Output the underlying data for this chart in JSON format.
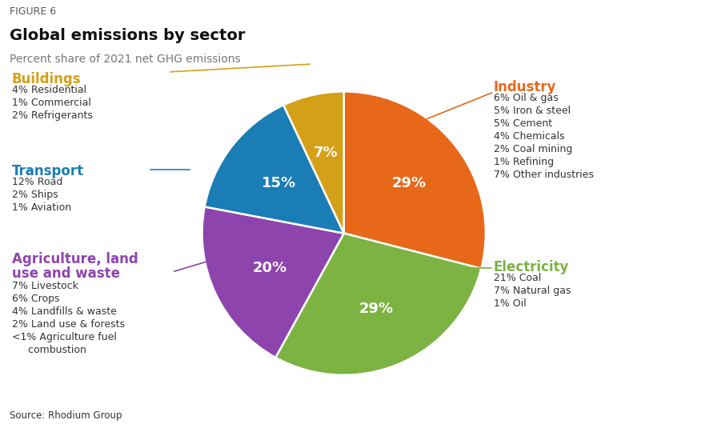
{
  "figure_label": "FIGURE 6",
  "title": "Global emissions by sector",
  "subtitle": "Percent share of 2021 net GHG emissions",
  "source": "Source: Rhodium Group",
  "values": [
    29,
    29,
    20,
    15,
    7
  ],
  "colors": [
    "#E8681A",
    "#7CB342",
    "#8E44AD",
    "#1A7DB5",
    "#D4A017"
  ],
  "pct_labels": [
    "29%",
    "29%",
    "20%",
    "15%",
    "7%"
  ],
  "startangle": 90,
  "background_color": "#FFFFFF",
  "industry_label": "Industry",
  "industry_color": "#E8681A",
  "industry_details": [
    "6% Oil & gas",
    "5% Iron & steel",
    "5% Cement",
    "4% Chemicals",
    "2% Coal mining",
    "1% Refining",
    "7% Other industries"
  ],
  "electricity_label": "Electricity",
  "electricity_color": "#7CB342",
  "electricity_details": [
    "21% Coal",
    "7% Natural gas",
    "1% Oil"
  ],
  "agriculture_label_1": "Agriculture, land",
  "agriculture_label_2": "use and waste",
  "agriculture_color": "#8E44AD",
  "agriculture_details": [
    "7% Livestock",
    "6% Crops",
    "4% Landfills & waste",
    "2% Land use & forests",
    "<1% Agriculture fuel",
    "     combustion"
  ],
  "transport_label": "Transport",
  "transport_color": "#1A7DB5",
  "transport_details": [
    "12% Road",
    "2% Ships",
    "1% Aviation"
  ],
  "buildings_label": "Buildings",
  "buildings_color": "#D4A017",
  "buildings_details": [
    "4% Residential",
    "1% Commercial",
    "2% Refrigerants"
  ],
  "detail_color": "#333333",
  "label_fontsize": 12,
  "detail_fontsize": 9,
  "pct_fontsize": 13,
  "title_fontsize": 14,
  "subtitle_fontsize": 10,
  "figlabel_fontsize": 9
}
